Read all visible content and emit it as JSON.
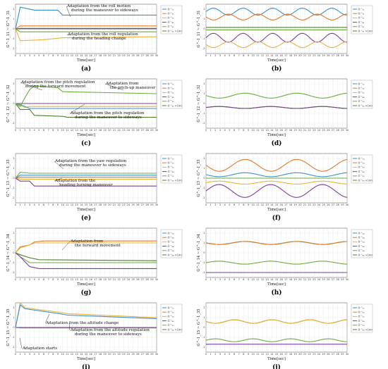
{
  "colors": {
    "blue": "#3a8fc9",
    "orange": "#e0792b",
    "yellow": "#e8b43a",
    "purple": "#7b3f9a",
    "green": "#6aac3a",
    "darkgreen": "#4e7f2d",
    "grid": "#dddddd",
    "axis": "#444444"
  },
  "chart_data": [
    {
      "id": "a",
      "type": "line",
      "caption": "(a)",
      "xlabel": "Time[sec]",
      "ylabel": "G^-1_11 ~ G^-1_31",
      "xlim": [
        0,
        30
      ],
      "ylim": [
        -2.5,
        2.5
      ],
      "legend": [
        "Ĝ⁻¹₁₁",
        "Ĝ⁻¹₂₁",
        "Ĝ⁻¹₃₁",
        "Ĝ⁻¹₄₁",
        "Ĝ⁻¹₅₁",
        "Ĝ⁻¹₆₁ ×100"
      ],
      "annotations": [
        {
          "lines": [
            "Adaptation from the roll motion",
            "during the maneuver to sideways"
          ]
        },
        {
          "lines": [
            "Adaptation from the roll regulation",
            "during the heading change"
          ]
        }
      ],
      "series": [
        {
          "color": "blue",
          "points": [
            [
              0,
              0
            ],
            [
              1,
              2.2
            ],
            [
              4,
              1.9
            ],
            [
              9,
              1.9
            ],
            [
              10,
              1.4
            ],
            [
              30,
              1.4
            ]
          ]
        },
        {
          "color": "orange",
          "points": [
            [
              0,
              0
            ],
            [
              1,
              0.3
            ],
            [
              30,
              0.3
            ]
          ]
        },
        {
          "color": "yellow",
          "points": [
            [
              0,
              0
            ],
            [
              1,
              -1.2
            ],
            [
              6,
              -1.1
            ],
            [
              10,
              -0.9
            ],
            [
              30,
              -0.8
            ]
          ]
        },
        {
          "color": "purple",
          "points": [
            [
              0,
              0
            ],
            [
              1,
              0.05
            ],
            [
              30,
              0.05
            ]
          ]
        },
        {
          "color": "green",
          "points": [
            [
              0,
              0
            ],
            [
              1,
              -0.3
            ],
            [
              30,
              -0.3
            ]
          ]
        },
        {
          "color": "darkgreen",
          "points": [
            [
              0,
              0
            ],
            [
              30,
              0
            ]
          ]
        }
      ]
    },
    {
      "id": "b",
      "type": "line",
      "caption": "(b)",
      "xlabel": "Time[sec]",
      "ylabel": "G^-1_11 ~ G^-1_31",
      "xlim": [
        0,
        30
      ],
      "ylim": [
        -2.5,
        2.5
      ],
      "legend": [
        "Ĝ⁻¹₁₁",
        "Ĝ⁻¹₂₁",
        "Ĝ⁻¹₃₁",
        "Ĝ⁻¹₄₁",
        "Ĝ⁻¹₅₁",
        "Ĝ⁻¹₆₁ ×100"
      ],
      "annotations": [],
      "series": [
        {
          "color": "blue",
          "sine": {
            "base": 1.75,
            "amp": 0.35,
            "period": 6.3,
            "phase": 0
          }
        },
        {
          "color": "orange",
          "sine": {
            "base": 1.2,
            "amp": 0.3,
            "period": 6.3,
            "phase": 3.1
          }
        },
        {
          "color": "darkgreen",
          "points": [
            [
              0,
              0.15
            ],
            [
              30,
              0.15
            ]
          ]
        },
        {
          "color": "purple",
          "sine": {
            "base": -0.9,
            "amp": 0.45,
            "period": 6.3,
            "phase": 0
          }
        },
        {
          "color": "yellow",
          "sine": {
            "base": -1.6,
            "amp": 0.3,
            "period": 6.3,
            "phase": 3.1
          }
        },
        {
          "color": "green",
          "points": [
            [
              0,
              -0.1
            ],
            [
              30,
              -0.1
            ]
          ]
        }
      ]
    },
    {
      "id": "c",
      "type": "line",
      "caption": "(c)",
      "xlabel": "Time[sec]",
      "ylabel": "G^-1_12 ~ G^-1_32",
      "xlim": [
        0,
        30
      ],
      "ylim": [
        -2.5,
        2.5
      ],
      "legend": [
        "Ĝ⁻¹₁₂",
        "Ĝ⁻¹₂₂",
        "Ĝ⁻¹₃₂",
        "Ĝ⁻¹₄₂",
        "Ĝ⁻¹₅₂",
        "Ĝ⁻¹₆₂ ×100"
      ],
      "annotations": [
        {
          "lines": [
            "Adaptation from the pitch regulation",
            "during the forward movement"
          ]
        },
        {
          "lines": [
            "Adaptation from",
            "the pitch-up maneuver"
          ]
        },
        {
          "lines": [
            "Adaptation from the pitch regulation",
            "during the maneuver to sideways"
          ]
        }
      ],
      "series": [
        {
          "color": "yellow",
          "points": [
            [
              0,
              0
            ],
            [
              1,
              -0.2
            ],
            [
              2,
              -0.4
            ],
            [
              3,
              -0.3
            ],
            [
              30,
              -0.3
            ]
          ]
        },
        {
          "color": "purple",
          "points": [
            [
              0,
              0
            ],
            [
              30,
              0
            ]
          ]
        },
        {
          "color": "blue",
          "points": [
            [
              0,
              0
            ],
            [
              1,
              -0.1
            ],
            [
              3,
              -0.5
            ],
            [
              30,
              -0.5
            ]
          ]
        },
        {
          "color": "darkgreen",
          "points": [
            [
              0,
              0
            ],
            [
              1,
              -0.6
            ],
            [
              3,
              -0.6
            ],
            [
              4,
              -1.2
            ],
            [
              10,
              -1.3
            ],
            [
              11,
              -1.4
            ],
            [
              30,
              -1.4
            ]
          ]
        },
        {
          "color": "green",
          "points": [
            [
              0,
              0
            ],
            [
              1,
              -0.3
            ],
            [
              2,
              0.6
            ],
            [
              3,
              1.4
            ],
            [
              4,
              1.8
            ],
            [
              9,
              1.6
            ],
            [
              10,
              1.2
            ],
            [
              30,
              1.0
            ]
          ]
        }
      ]
    },
    {
      "id": "d",
      "type": "line",
      "caption": "(d)",
      "xlabel": "Time[sec]",
      "ylabel": "G^-1_12 ~ G^-1_32",
      "xlim": [
        0,
        30
      ],
      "ylim": [
        -2.5,
        2.5
      ],
      "legend": [
        "Ĝ⁻¹₁₂",
        "Ĝ⁻¹₂₂",
        "Ĝ⁻¹₃₂",
        "Ĝ⁻¹₄₂",
        "Ĝ⁻¹₅₂",
        "Ĝ⁻¹₆₂ ×100"
      ],
      "annotations": [],
      "series": [
        {
          "color": "green",
          "sine": {
            "base": 0.8,
            "amp": 0.25,
            "period": 11,
            "phase": 3.1
          }
        },
        {
          "color": "darkgreen",
          "sine": {
            "base": -0.4,
            "amp": 0.1,
            "period": 11,
            "phase": 0
          }
        },
        {
          "color": "purple",
          "sine": {
            "base": -0.4,
            "amp": 0.1,
            "period": 11,
            "phase": 0
          }
        }
      ]
    },
    {
      "id": "e",
      "type": "line",
      "caption": "(e)",
      "xlabel": "Time[sec]",
      "ylabel": "G^-1_13 ~ G^-1_33",
      "xlim": [
        0,
        30
      ],
      "ylim": [
        -2.5,
        2.5
      ],
      "legend": [
        "Ĝ⁻¹₁₃",
        "Ĝ⁻¹₂₃",
        "Ĝ⁻¹₃₃",
        "Ĝ⁻¹₄₃",
        "Ĝ⁻¹₅₃",
        "Ĝ⁻¹₆₃ ×100"
      ],
      "annotations": [
        {
          "lines": [
            "Adaptation from the yaw regulation",
            "during the maneuver to sideways"
          ]
        },
        {
          "lines": [
            "Adaptation from the",
            "heading turning maneuver"
          ]
        }
      ],
      "series": [
        {
          "color": "green",
          "points": [
            [
              0,
              0
            ],
            [
              1,
              0.6
            ],
            [
              3,
              0.5
            ],
            [
              30,
              0.5
            ]
          ]
        },
        {
          "color": "blue",
          "points": [
            [
              0,
              0
            ],
            [
              1,
              0.3
            ],
            [
              30,
              0.3
            ]
          ]
        },
        {
          "color": "orange",
          "points": [
            [
              0,
              0
            ],
            [
              1,
              0.1
            ],
            [
              30,
              0.1
            ]
          ]
        },
        {
          "color": "yellow",
          "points": [
            [
              0,
              0
            ],
            [
              1,
              -0.1
            ],
            [
              30,
              -0.1
            ]
          ]
        },
        {
          "color": "purple",
          "points": [
            [
              0,
              0
            ],
            [
              1,
              -0.3
            ],
            [
              3,
              -0.3
            ],
            [
              4,
              -0.8
            ],
            [
              30,
              -0.8
            ]
          ]
        }
      ]
    },
    {
      "id": "f",
      "type": "line",
      "caption": "(f)",
      "xlabel": "Time[sec]",
      "ylabel": "G^-1_13 ~ G^-1_33",
      "xlim": [
        0,
        30
      ],
      "ylim": [
        -2.5,
        2.5
      ],
      "legend": [
        "Ĝ⁻¹₁₃",
        "Ĝ⁻¹₂₃",
        "Ĝ⁻¹₃₃",
        "Ĝ⁻¹₄₃",
        "Ĝ⁻¹₅₃",
        "Ĝ⁻¹₆₃ ×100"
      ],
      "annotations": [],
      "series": [
        {
          "color": "orange",
          "sine": {
            "base": 1.3,
            "amp": 0.6,
            "period": 11,
            "phase": 3.1
          }
        },
        {
          "color": "blue",
          "sine": {
            "base": 0.35,
            "amp": 0.2,
            "period": 11,
            "phase": 3.1
          }
        },
        {
          "color": "green",
          "points": [
            [
              0,
              0
            ],
            [
              30,
              0
            ]
          ]
        },
        {
          "color": "yellow",
          "sine": {
            "base": -0.45,
            "amp": 0.15,
            "period": 11,
            "phase": 0
          }
        },
        {
          "color": "purple",
          "sine": {
            "base": -1.3,
            "amp": 0.65,
            "period": 11,
            "phase": 0
          }
        }
      ]
    },
    {
      "id": "g",
      "type": "line",
      "caption": "(g)",
      "xlabel": "Time[sec]",
      "ylabel": "G^-1_14 ~ G^-1_34",
      "xlim": [
        0,
        30
      ],
      "ylim": [
        -2.5,
        2.5
      ],
      "legend": [
        "Ĝ⁻¹₁₄",
        "Ĝ⁻¹₂₄",
        "Ĝ⁻¹₃₄",
        "Ĝ⁻¹₄₄",
        "Ĝ⁻¹₅₄",
        "Ĝ⁻¹₆₄ ×100"
      ],
      "annotations": [
        {
          "lines": [
            "Adaptation from",
            "the forward movement"
          ]
        }
      ],
      "series": [
        {
          "color": "orange",
          "points": [
            [
              0,
              0
            ],
            [
              1,
              0.6
            ],
            [
              3,
              0.8
            ],
            [
              4,
              1.1
            ],
            [
              6,
              1.2
            ],
            [
              30,
              1.2
            ]
          ]
        },
        {
          "color": "yellow",
          "points": [
            [
              0,
              0
            ],
            [
              1,
              0.5
            ],
            [
              3,
              0.8
            ],
            [
              4,
              1.0
            ],
            [
              30,
              1.0
            ]
          ]
        },
        {
          "color": "green",
          "points": [
            [
              0,
              0
            ],
            [
              1,
              -0.4
            ],
            [
              3,
              -1.0
            ],
            [
              5,
              -1.0
            ],
            [
              30,
              -1.0
            ]
          ]
        },
        {
          "color": "purple",
          "points": [
            [
              0,
              0
            ],
            [
              1,
              -0.4
            ],
            [
              3,
              -1.4
            ],
            [
              5,
              -1.6
            ],
            [
              30,
              -1.6
            ]
          ]
        },
        {
          "color": "darkgreen",
          "points": [
            [
              0,
              0
            ],
            [
              1,
              -0.2
            ],
            [
              3,
              -0.5
            ],
            [
              5,
              -0.7
            ],
            [
              30,
              -0.8
            ]
          ]
        }
      ]
    },
    {
      "id": "h",
      "type": "line",
      "caption": "(h)",
      "xlabel": "Time[sec]",
      "ylabel": "G^-1_14 ~ G^-1_34",
      "xlim": [
        0,
        30
      ],
      "ylim": [
        -2.5,
        2.5
      ],
      "legend": [
        "Ĝ⁻¹₁₄",
        "Ĝ⁻¹₂₄",
        "Ĝ⁻¹₃₄",
        "Ĝ⁻¹₄₄",
        "Ĝ⁻¹₅₄",
        "Ĝ⁻¹₆₄ ×100"
      ],
      "annotations": [],
      "series": [
        {
          "color": "darkgreen",
          "sine": {
            "base": 1.0,
            "amp": 0.15,
            "period": 11,
            "phase": 3.1
          }
        },
        {
          "color": "orange",
          "sine": {
            "base": 1.0,
            "amp": 0.15,
            "period": 11,
            "phase": 3.1
          }
        },
        {
          "color": "green",
          "sine": {
            "base": -1.0,
            "amp": 0.15,
            "period": 11,
            "phase": 0
          }
        },
        {
          "color": "purple",
          "points": [
            [
              0,
              -2.0
            ],
            [
              30,
              -2.0
            ]
          ]
        }
      ]
    },
    {
      "id": "i",
      "type": "line",
      "caption": "(i)",
      "xlabel": "Time[sec]",
      "ylabel": "G^-1_15 ~ G^-1_35",
      "xlim": [
        0,
        30
      ],
      "ylim": [
        -2.5,
        2.5
      ],
      "legend": [
        "Ĝ⁻¹₁₅",
        "Ĝ⁻¹₂₅",
        "Ĝ⁻¹₃₅",
        "Ĝ⁻¹₄₅",
        "Ĝ⁻¹₅₅",
        "Ĝ⁻¹₆₅ ×100"
      ],
      "annotations": [
        {
          "lines": [
            "Adaptation from the altitude change"
          ]
        },
        {
          "lines": [
            "Adaptation from the altitude regulation",
            "during the maneuver to sideways"
          ]
        },
        {
          "lines": [
            "Adaptation starts"
          ]
        }
      ],
      "series": [
        {
          "color": "yellow",
          "points": [
            [
              0,
              0
            ],
            [
              1,
              2.5
            ],
            [
              2,
              2.0
            ],
            [
              10,
              1.5
            ],
            [
              11,
              1.4
            ],
            [
              30,
              1.0
            ]
          ]
        },
        {
          "color": "blue",
          "points": [
            [
              0,
              0
            ],
            [
              1,
              2.3
            ],
            [
              2,
              1.9
            ],
            [
              10,
              1.35
            ],
            [
              11,
              1.25
            ],
            [
              30,
              0.9
            ]
          ]
        },
        {
          "color": "green",
          "points": [
            [
              0,
              0
            ],
            [
              1,
              -0.05
            ],
            [
              30,
              -0.05
            ]
          ]
        },
        {
          "color": "purple",
          "points": [
            [
              0,
              0
            ],
            [
              30,
              0
            ]
          ]
        }
      ]
    },
    {
      "id": "j",
      "type": "line",
      "caption": "(j)",
      "xlabel": "Time[sec]",
      "ylabel": "G^-1_15 ~ G^-1_35",
      "xlim": [
        0,
        30
      ],
      "ylim": [
        -2.5,
        2.5
      ],
      "legend": [
        "Ĝ⁻¹₁₅",
        "Ĝ⁻¹₂₅",
        "Ĝ⁻¹₃₅",
        "Ĝ⁻¹₄₅",
        "Ĝ⁻¹₅₅",
        "Ĝ⁻¹₆₅ ×100"
      ],
      "annotations": [],
      "series": [
        {
          "color": "darkgreen",
          "sine": {
            "base": 0.6,
            "amp": 0.18,
            "period": 8,
            "phase": 3.1
          }
        },
        {
          "color": "yellow",
          "sine": {
            "base": 0.6,
            "amp": 0.18,
            "period": 8,
            "phase": 3.1
          }
        },
        {
          "color": "green",
          "sine": {
            "base": -1.3,
            "amp": 0.15,
            "period": 8,
            "phase": 0
          }
        },
        {
          "color": "purple",
          "points": [
            [
              0,
              -1.7
            ],
            [
              30,
              -1.7
            ]
          ]
        }
      ]
    }
  ]
}
